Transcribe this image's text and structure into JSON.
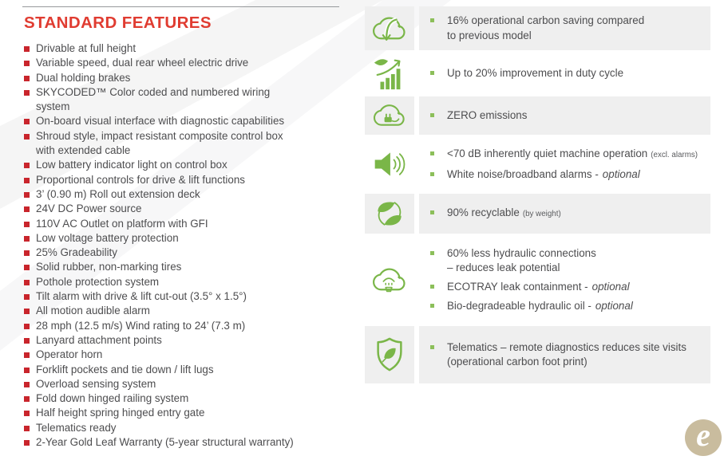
{
  "standard_features": {
    "title": "STANDARD FEATURES",
    "items": [
      "Drivable at full height",
      "Variable speed, dual rear wheel electric drive",
      "Dual holding brakes",
      "SKYCODED™ Color coded and numbered wiring system",
      "On-board visual interface with diagnostic capabilities",
      "Shroud style, impact resistant composite control box with extended cable",
      "Low battery indicator light on control box",
      "Proportional controls for drive & lift functions",
      "3’ (0.90 m) Roll out extension deck",
      "24V DC Power source",
      "110V AC Outlet on platform with GFI",
      "Low voltage battery protection",
      "25% Gradeability",
      "Solid rubber, non-marking tires",
      "Pothole protection system",
      "Tilt alarm with drive & lift cut-out (3.5° x 1.5°)",
      "All motion audible alarm",
      "28 mph (12.5 m/s) Wind rating to 24’ (7.3 m)",
      "Lanyard attachment points",
      "Operator horn",
      "Forklift pockets and tie down / lift lugs",
      "Overload sensing system",
      "Fold down hinged railing system",
      "Half height spring hinged entry gate",
      "Telematics ready",
      "2-Year Gold Leaf Warranty (5-year structural warranty)"
    ]
  },
  "eco_panel": {
    "rows": [
      {
        "icon": "carbon-saving-cloud-icon",
        "shaded": true,
        "bullets": [
          {
            "lines": [
              "16% operational carbon saving compared",
              "to previous model"
            ]
          }
        ]
      },
      {
        "icon": "duty-cycle-chart-icon",
        "shaded": false,
        "bullets": [
          {
            "lines": [
              "Up to 20% improvement in duty cycle"
            ]
          }
        ]
      },
      {
        "icon": "zero-emissions-plug-cloud-icon",
        "shaded": true,
        "bullets": [
          {
            "lines": [
              "ZERO emissions"
            ]
          }
        ]
      },
      {
        "icon": "quiet-speaker-icon",
        "shaded": false,
        "bullets": [
          {
            "lines": [
              "<70 dB inherently quiet machine operation"
            ],
            "small": "(excl. alarms)"
          },
          {
            "lines": [
              "White noise/broadband alarms -"
            ],
            "italic": "optional"
          }
        ]
      },
      {
        "icon": "recyclable-leaves-icon",
        "shaded": true,
        "bullets": [
          {
            "lines": [
              "90% recyclable"
            ],
            "small": "(by weight)"
          }
        ]
      },
      {
        "icon": "hydraulic-cloud-icon",
        "shaded": false,
        "bullets": [
          {
            "lines": [
              "60% less hydraulic connections",
              "– reduces leak potential"
            ]
          },
          {
            "lines": [
              "ECOTRAY leak containment -"
            ],
            "italic": "optional"
          },
          {
            "lines": [
              "Bio-degradeable hydraulic oil -"
            ],
            "italic": "optional"
          }
        ]
      },
      {
        "icon": "telematics-shield-icon",
        "shaded": true,
        "bullets": [
          {
            "lines": [
              "Telematics – remote diagnostics reduces site visits",
              "(operational carbon foot print)"
            ]
          }
        ]
      }
    ]
  },
  "logo": {
    "letter": "e"
  },
  "colors": {
    "title_red": "#e03c31",
    "bullet_red": "#c9252c",
    "body_text": "#4d4d4f",
    "eco_green": "#7ab648",
    "green_bullet": "#8cbf5a",
    "row_shade": "#efefef",
    "logo_tan": "#c9bc9e"
  }
}
